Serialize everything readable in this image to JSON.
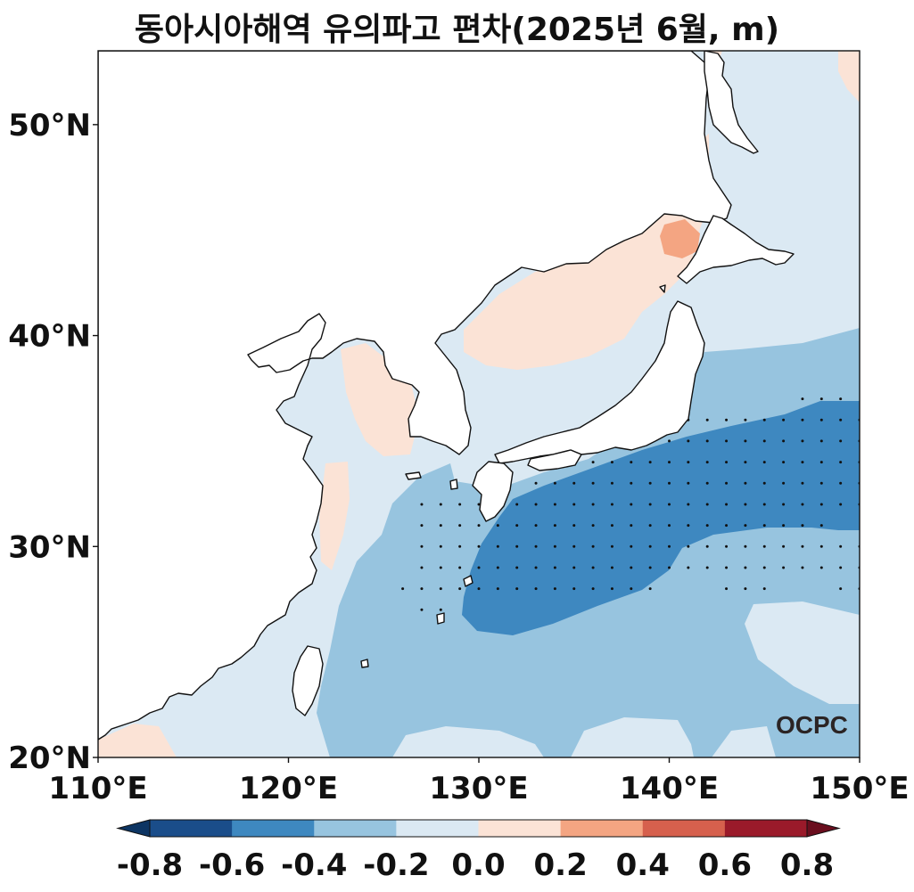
{
  "title": "동아시아해역 유의파고 편차(2025년 6월, m)",
  "map": {
    "lon_range": [
      110,
      150
    ],
    "lat_range": [
      20,
      53.5
    ],
    "lon_ticks": [
      "110°E",
      "120°E",
      "130°E",
      "140°E",
      "150°E"
    ],
    "lat_ticks": [
      "20°N",
      "30°N",
      "40°N",
      "50°N"
    ],
    "lon_tick_values": [
      110,
      120,
      130,
      140,
      150
    ],
    "lat_tick_values": [
      20,
      30,
      40,
      50
    ],
    "stippling": "significance dots over strongest negative anomaly region"
  },
  "colorbar": {
    "ticks": [
      "-0.8",
      "-0.6",
      "-0.4",
      "-0.2",
      "0.0",
      "0.2",
      "0.4",
      "0.6",
      "0.8"
    ],
    "colors": [
      "#1a4d8a",
      "#3e88c0",
      "#97c4df",
      "#dbe9f3",
      "#fbe3d6",
      "#f4a582",
      "#d6604d",
      "#9a1a2a"
    ],
    "under_color": "#0d3563",
    "over_color": "#6a0e1e"
  },
  "logo": "OCPC"
}
